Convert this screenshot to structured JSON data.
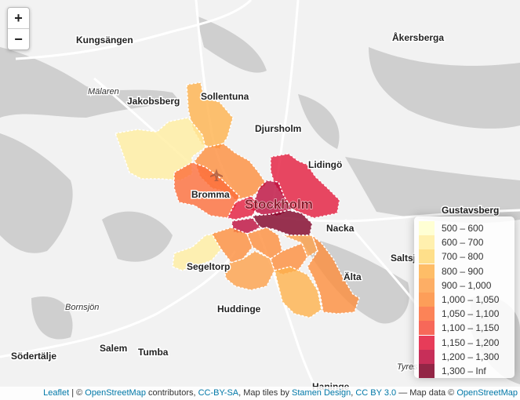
{
  "zoom": {
    "in_label": "+",
    "out_label": "−"
  },
  "places": {
    "kungsangen": "Kungsängen",
    "akersberga": "Åkersberga",
    "malaren": "Mälaren",
    "jakobsberg": "Jakobsberg",
    "sollentuna": "Sollentuna",
    "djursholm": "Djursholm",
    "lidingo": "Lidingö",
    "bromma": "Bromma",
    "stockholm": "Stockholm",
    "gustavsberg": "Gustavsberg",
    "nacka": "Nacka",
    "saltsjobaden": "Saltsj",
    "segeltorp": "Segeltorp",
    "alta": "Älta",
    "bornsjon": "Bornsjön",
    "huddinge": "Huddinge",
    "salem": "Salem",
    "tumba": "Tumba",
    "sodertalje": "Södertälje",
    "tyreso": "Tyres",
    "haninge": "Haninge"
  },
  "legend": [
    {
      "label": "500 – 600",
      "color": "#ffffcc"
    },
    {
      "label": "600 – 700",
      "color": "#ffeda0"
    },
    {
      "label": "700 – 800",
      "color": "#fed976"
    },
    {
      "label": "800 – 900",
      "color": "#feb24c"
    },
    {
      "label": "900 – 1,000",
      "color": "#fda04a"
    },
    {
      "label": "1,000 – 1,050",
      "color": "#fd8d3c"
    },
    {
      "label": "1,050 – 1,100",
      "color": "#fc6d3a"
    },
    {
      "label": "1,100 – 1,150",
      "color": "#f64d3c"
    },
    {
      "label": "1,150 – 1,200",
      "color": "#e31a3c"
    },
    {
      "label": "1,200 – 1,300",
      "color": "#bd0b3c"
    },
    {
      "label": "1,300 – Inf",
      "color": "#800026"
    }
  ],
  "attribution": {
    "leaflet": "Leaflet",
    "sep1": " | © ",
    "osm": "OpenStreetMap",
    "contrib": " contributors, ",
    "ccbysa": "CC-BY-SA",
    "tiles": ", Map tiles by ",
    "stamen": "Stamen Design",
    "comma": ", ",
    "ccby": "CC BY 3.0",
    "mapdata": " — Map data © ",
    "osm2": "OpenStreetMap"
  }
}
